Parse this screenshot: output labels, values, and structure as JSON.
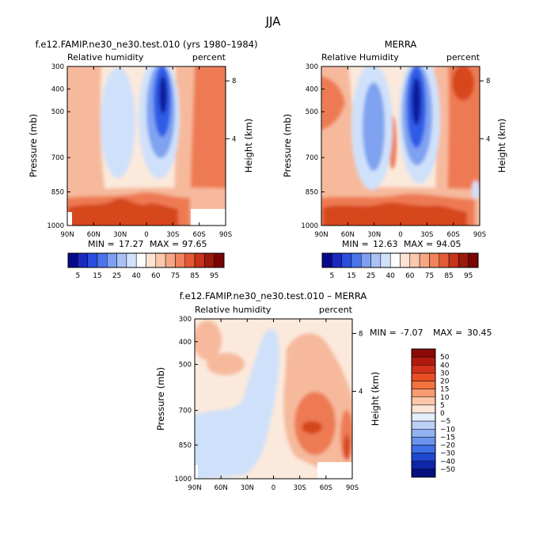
{
  "figure": {
    "title": "JJA"
  },
  "colors": {
    "deep_blue": "#0a1e9e",
    "mid_blue": "#2f5be6",
    "light_blue": "#7fa3f0",
    "pale_blue": "#cfe1fa",
    "cream": "#fbe9dc",
    "salmon": "#f6b99c",
    "orange": "#ee7a53",
    "red": "#d6461e",
    "dark_red": "#8b0a0a"
  },
  "chart_data": [
    {
      "type": "heatmap",
      "id": "model",
      "title": "f.e12.FAMIP.ne30_ne30.test.010 (yrs 1980–1984)",
      "left_label": "Relative humidity",
      "right_label": "percent",
      "xlabel": "",
      "ylabel": "Pressure (mb)",
      "ylabel_right": "Height (km)",
      "x_ticks": [
        "90N",
        "60N",
        "30N",
        "0",
        "30S",
        "60S",
        "90S"
      ],
      "y_ticks": [
        "300",
        "400",
        "500",
        "700",
        "850",
        "1000"
      ],
      "height_ticks": [
        "8",
        "4"
      ],
      "min_label": "MIN =",
      "min_value": "17.27",
      "max_label": "MAX =",
      "max_value": "97.65",
      "legend_ticks": [
        "5",
        "15",
        "25",
        "40",
        "60",
        "75",
        "85",
        "95"
      ]
    },
    {
      "type": "heatmap",
      "id": "merra",
      "title": "MERRA",
      "left_label": "Relative Humidity",
      "right_label": "percent",
      "xlabel": "",
      "ylabel": "Pressure (mb)",
      "ylabel_right": "Height (km)",
      "x_ticks": [
        "90N",
        "60N",
        "30N",
        "0",
        "30S",
        "60S",
        "90S"
      ],
      "y_ticks": [
        "300",
        "400",
        "500",
        "700",
        "850",
        "1000"
      ],
      "height_ticks": [
        "8",
        "4"
      ],
      "min_label": "MIN =",
      "min_value": "12.63",
      "max_label": "MAX =",
      "max_value": "94.05",
      "legend_ticks": [
        "5",
        "15",
        "25",
        "40",
        "60",
        "75",
        "85",
        "95"
      ]
    },
    {
      "type": "heatmap",
      "id": "diff",
      "title": "f.e12.FAMIP.ne30_ne30.test.010 – MERRA",
      "left_label": "Relative humidity",
      "right_label": "percent",
      "xlabel": "",
      "ylabel": "Pressure (mb)",
      "ylabel_right": "Height (km)",
      "x_ticks": [
        "90N",
        "60N",
        "30N",
        "0",
        "30S",
        "60S",
        "90S"
      ],
      "y_ticks": [
        "300",
        "400",
        "500",
        "700",
        "850",
        "1000"
      ],
      "height_ticks": [
        "8",
        "4"
      ],
      "min_label": "MIN =",
      "min_value": "-7.07",
      "max_label": "MAX =",
      "max_value": "30.45",
      "legend_ticks": [
        "50",
        "40",
        "30",
        "20",
        "15",
        "10",
        "5",
        "0",
        "−5",
        "−10",
        "−15",
        "−20",
        "−30",
        "−40",
        "−50"
      ]
    }
  ]
}
